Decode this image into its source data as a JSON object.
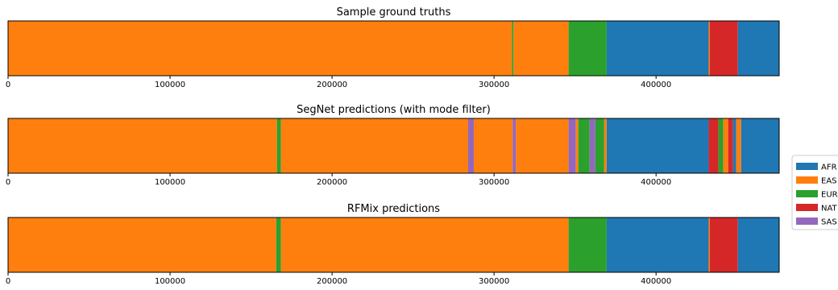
{
  "chart_data": [
    {
      "type": "bar",
      "orientation": "horizontal-stacked-segments",
      "title": "Sample ground truths",
      "xlim": [
        0,
        476000
      ],
      "xticks": [
        0,
        100000,
        200000,
        300000,
        400000
      ],
      "xtick_labels": [
        "0",
        "100000",
        "200000",
        "300000",
        "400000"
      ],
      "segments": [
        {
          "start": 0,
          "end": 311000,
          "category": "EAS"
        },
        {
          "start": 311000,
          "end": 312000,
          "category": "EUR"
        },
        {
          "start": 312000,
          "end": 346000,
          "category": "EAS"
        },
        {
          "start": 346000,
          "end": 369500,
          "category": "EUR"
        },
        {
          "start": 369500,
          "end": 432500,
          "category": "AFR"
        },
        {
          "start": 432500,
          "end": 433200,
          "category": "EAS"
        },
        {
          "start": 433200,
          "end": 450500,
          "category": "NAT"
        },
        {
          "start": 450500,
          "end": 476000,
          "category": "AFR"
        }
      ]
    },
    {
      "type": "bar",
      "orientation": "horizontal-stacked-segments",
      "title": "SegNet predictions (with mode filter)",
      "xlim": [
        0,
        476000
      ],
      "xticks": [
        0,
        100000,
        200000,
        300000,
        400000
      ],
      "xtick_labels": [
        "0",
        "100000",
        "200000",
        "300000",
        "400000"
      ],
      "segments": [
        {
          "start": 0,
          "end": 166000,
          "category": "EAS"
        },
        {
          "start": 166000,
          "end": 168500,
          "category": "EUR"
        },
        {
          "start": 168500,
          "end": 284000,
          "category": "EAS"
        },
        {
          "start": 284000,
          "end": 287500,
          "category": "SAS"
        },
        {
          "start": 287500,
          "end": 311500,
          "category": "EAS"
        },
        {
          "start": 311500,
          "end": 313500,
          "category": "SAS"
        },
        {
          "start": 313500,
          "end": 346000,
          "category": "EAS"
        },
        {
          "start": 346000,
          "end": 350500,
          "category": "SAS"
        },
        {
          "start": 350500,
          "end": 352000,
          "category": "EAS"
        },
        {
          "start": 352000,
          "end": 359000,
          "category": "EUR"
        },
        {
          "start": 359000,
          "end": 362500,
          "category": "SAS"
        },
        {
          "start": 362500,
          "end": 368000,
          "category": "EUR"
        },
        {
          "start": 368000,
          "end": 369500,
          "category": "EAS"
        },
        {
          "start": 369500,
          "end": 432500,
          "category": "AFR"
        },
        {
          "start": 432500,
          "end": 438500,
          "category": "NAT"
        },
        {
          "start": 438500,
          "end": 441500,
          "category": "EUR"
        },
        {
          "start": 441500,
          "end": 444500,
          "category": "EAS"
        },
        {
          "start": 444500,
          "end": 447500,
          "category": "NAT"
        },
        {
          "start": 447500,
          "end": 449500,
          "category": "AFR"
        },
        {
          "start": 449500,
          "end": 452500,
          "category": "EAS"
        },
        {
          "start": 452500,
          "end": 476000,
          "category": "AFR"
        }
      ]
    },
    {
      "type": "bar",
      "orientation": "horizontal-stacked-segments",
      "title": "RFMix predictions",
      "xlim": [
        0,
        476000
      ],
      "xticks": [
        0,
        100000,
        200000,
        300000,
        400000
      ],
      "xtick_labels": [
        "0",
        "100000",
        "200000",
        "300000",
        "400000"
      ],
      "segments": [
        {
          "start": 0,
          "end": 165500,
          "category": "EAS"
        },
        {
          "start": 165500,
          "end": 168500,
          "category": "EUR"
        },
        {
          "start": 168500,
          "end": 346000,
          "category": "EAS"
        },
        {
          "start": 346000,
          "end": 369500,
          "category": "EUR"
        },
        {
          "start": 369500,
          "end": 432500,
          "category": "AFR"
        },
        {
          "start": 432500,
          "end": 433200,
          "category": "EAS"
        },
        {
          "start": 433200,
          "end": 450500,
          "category": "NAT"
        },
        {
          "start": 450500,
          "end": 476000,
          "category": "AFR"
        }
      ]
    }
  ],
  "legend": {
    "placement": "right",
    "entries": [
      {
        "label": "AFR",
        "color": "#1f77b4"
      },
      {
        "label": "EAS",
        "color": "#ff7f0e"
      },
      {
        "label": "EUR",
        "color": "#2ca02c"
      },
      {
        "label": "NAT",
        "color": "#d62728"
      },
      {
        "label": "SAS",
        "color": "#9467bd"
      }
    ]
  }
}
